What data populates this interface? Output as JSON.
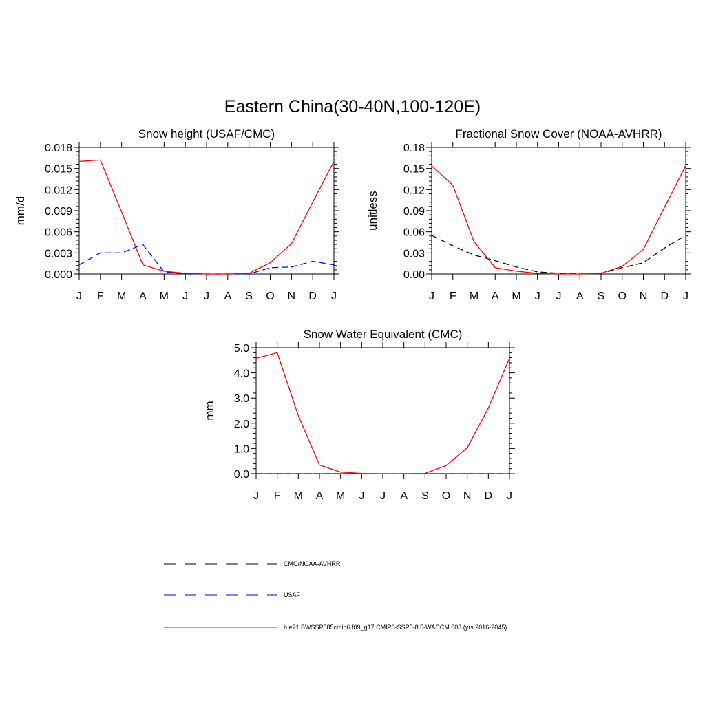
{
  "figure": {
    "title": "Eastern China(30-40N,100-120E)"
  },
  "legend": {
    "items": [
      {
        "label": "CMC/NOAA-AVHRR",
        "color": "#000000",
        "dash": "dashed"
      },
      {
        "label": "USAF",
        "color": "#0000ff",
        "dash": "dashed"
      },
      {
        "label": "b.e21.BWSSP585cmip6.f09_g17.CMIP6-SSP5-8.5-WACCM.003 (yrs 2016-2045)",
        "color": "#ff0000",
        "dash": "solid"
      }
    ]
  },
  "chart_data": [
    {
      "type": "line",
      "title": "Snow height (USAF/CMC)",
      "xlabel": "",
      "ylabel": "mm/d",
      "categories": [
        "J",
        "F",
        "M",
        "A",
        "M",
        "J",
        "J",
        "A",
        "S",
        "O",
        "N",
        "D",
        "J"
      ],
      "ylim": [
        0,
        0.018
      ],
      "yticks": [
        "0.000",
        "0.003",
        "0.006",
        "0.009",
        "0.012",
        "0.015",
        "0.018"
      ],
      "grid": false,
      "series": [
        {
          "name": "b.e21.BWSSP585cmip6.f09_g17.CMIP6-SSP5-8.5-WACCM.003 (yrs 2016-2045)",
          "color": "#ff0000",
          "dash": "solid",
          "values": [
            0.016,
            0.0162,
            0.0088,
            0.0013,
            0.0004,
            0.0001,
            0.0,
            0.0,
            0.0001,
            0.0016,
            0.0043,
            0.0102,
            0.016
          ]
        },
        {
          "name": "USAF",
          "color": "#0000ff",
          "dash": "dashed",
          "values": [
            0.0013,
            0.003,
            0.003,
            0.0042,
            0.0003,
            0.0,
            0.0,
            0.0,
            0.0,
            0.0009,
            0.001,
            0.0018,
            0.0013
          ]
        }
      ]
    },
    {
      "type": "line",
      "title": "Fractional Snow Cover (NOAA-AVHRR)",
      "xlabel": "",
      "ylabel": "unitless",
      "categories": [
        "J",
        "F",
        "M",
        "A",
        "M",
        "J",
        "J",
        "A",
        "S",
        "O",
        "N",
        "D",
        "J"
      ],
      "ylim": [
        0,
        0.18
      ],
      "yticks": [
        "0.00",
        "0.03",
        "0.06",
        "0.09",
        "0.12",
        "0.15",
        "0.18"
      ],
      "grid": false,
      "series": [
        {
          "name": "b.e21.BWSSP585cmip6.f09_g17.CMIP6-SSP5-8.5-WACCM.003 (yrs 2016-2045)",
          "color": "#ff0000",
          "dash": "solid",
          "values": [
            0.154,
            0.126,
            0.046,
            0.009,
            0.004,
            0.001,
            0.0,
            0.0,
            0.001,
            0.011,
            0.035,
            0.095,
            0.154
          ]
        },
        {
          "name": "CMC/NOAA-AVHRR",
          "color": "#000000",
          "dash": "dashed",
          "values": [
            0.055,
            0.04,
            0.027,
            0.019,
            0.01,
            0.003,
            0.001,
            0.0,
            0.001,
            0.009,
            0.016,
            0.037,
            0.055
          ]
        }
      ]
    },
    {
      "type": "line",
      "title": "Snow Water Equivalent (CMC)",
      "xlabel": "",
      "ylabel": "mm",
      "categories": [
        "J",
        "F",
        "M",
        "A",
        "M",
        "J",
        "J",
        "A",
        "S",
        "O",
        "N",
        "D",
        "J"
      ],
      "ylim": [
        0,
        5.0
      ],
      "yticks": [
        "0.0",
        "1.0",
        "2.0",
        "3.0",
        "4.0",
        "5.0"
      ],
      "grid": false,
      "series": [
        {
          "name": "b.e21.BWSSP585cmip6.f09_g17.CMIP6-SSP5-8.5-WACCM.003 (yrs 2016-2045)",
          "color": "#ff0000",
          "dash": "solid",
          "values": [
            4.58,
            4.8,
            2.3,
            0.35,
            0.06,
            0.01,
            0.0,
            0.0,
            0.01,
            0.32,
            1.03,
            2.6,
            4.58
          ]
        },
        {
          "name": "CMC/NOAA-AVHRR",
          "color": "#000000",
          "dash": "dashed",
          "values": [
            0,
            0,
            0,
            0,
            0,
            0,
            0,
            0,
            0,
            0,
            0,
            0,
            0
          ]
        }
      ]
    }
  ]
}
